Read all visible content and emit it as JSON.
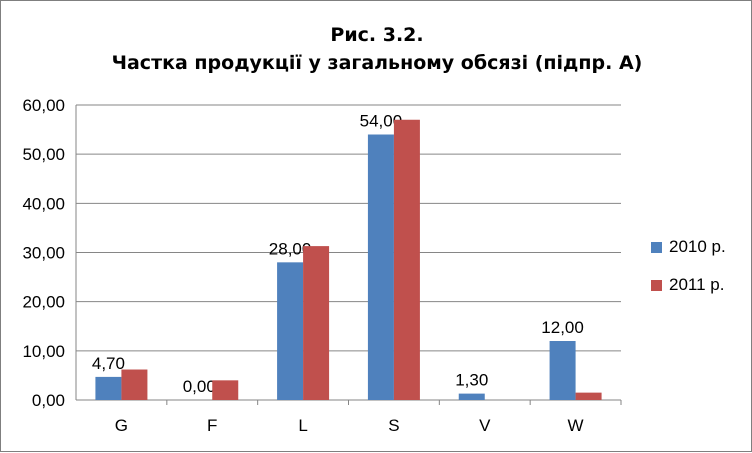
{
  "chart_data": {
    "type": "bar",
    "title_line1": "Рис. 3.2.",
    "title_line2": "Частка продукції у загальному обсязі (підпр. А)",
    "categories": [
      "G",
      "F",
      "L",
      "S",
      "V",
      "W"
    ],
    "series": [
      {
        "name": "2010 р.",
        "color": "#4f81bd",
        "values": [
          4.7,
          0.0,
          28.0,
          54.0,
          1.3,
          12.0
        ],
        "labels": [
          "4,70",
          "0,00",
          "28,00",
          "54,00",
          "1,30",
          "12,00"
        ]
      },
      {
        "name": "2011 р.",
        "color": "#c0504d",
        "values": [
          6.2,
          4.0,
          31.3,
          57.0,
          0.0,
          1.5
        ]
      }
    ],
    "ylim": [
      0,
      60
    ],
    "yticks": [
      "0,00",
      "10,00",
      "20,00",
      "30,00",
      "40,00",
      "50,00",
      "60,00"
    ],
    "grid": true,
    "legend_position": "right"
  }
}
